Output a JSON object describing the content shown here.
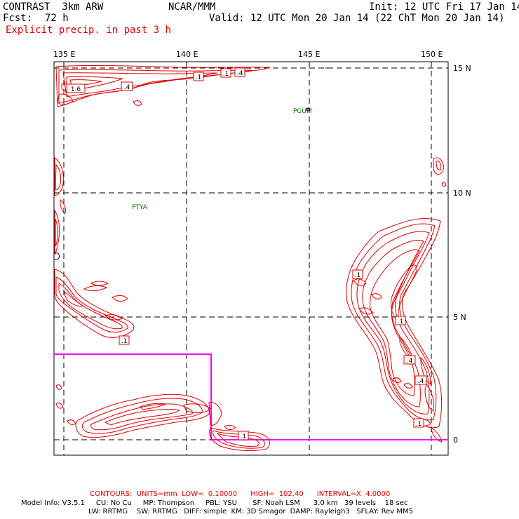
{
  "header": {
    "model": "CONTRAST  3km ARW",
    "center": "NCAR/MMM",
    "init": "Init: 12 UTC Fri 17 Jan 14",
    "fcst_label": "Fcst:",
    "fcst_value": "72 h",
    "valid": "Valid: 12 UTC Mon 20 Jan 14 (22 ChT Mon 20 Jan 14)",
    "field": "Explicit precip. in past 3 h"
  },
  "axes": {
    "lon_labels": [
      "135 E",
      "140 E",
      "145 E",
      "150 E"
    ],
    "lat_labels": [
      "15 N",
      "10 N",
      "5 N",
      "0"
    ]
  },
  "stations": [
    "PGUM",
    "PTYA"
  ],
  "contour_labels": [
    ".1",
    ".1",
    ".4",
    "1.6",
    ".4",
    ".1",
    ".1",
    ".1",
    ".4",
    ".4",
    ".1",
    ".1"
  ],
  "colors": {
    "contour": "#e00000",
    "domain_box": "#ff00ff",
    "station": "#007000",
    "text": "#000000"
  },
  "footer": {
    "contours": "CONTOURS:  UNITS=mm  LOW=  0.10000      HIGH=  102.40      INTERVAL=X  4.0000",
    "line1": "Model Info: V3.5.1     CU: No Cu     MP: Thompson     PBL: YSU       SF: Noah LSM      3.0 km   39 levels    18 sec",
    "line2": "LW: RRTMG    SW: RRTMG   DIFF: simple  KM: 3D Smagor  DAMP: Rayleigh3   SFLAY: Rev MM5"
  }
}
